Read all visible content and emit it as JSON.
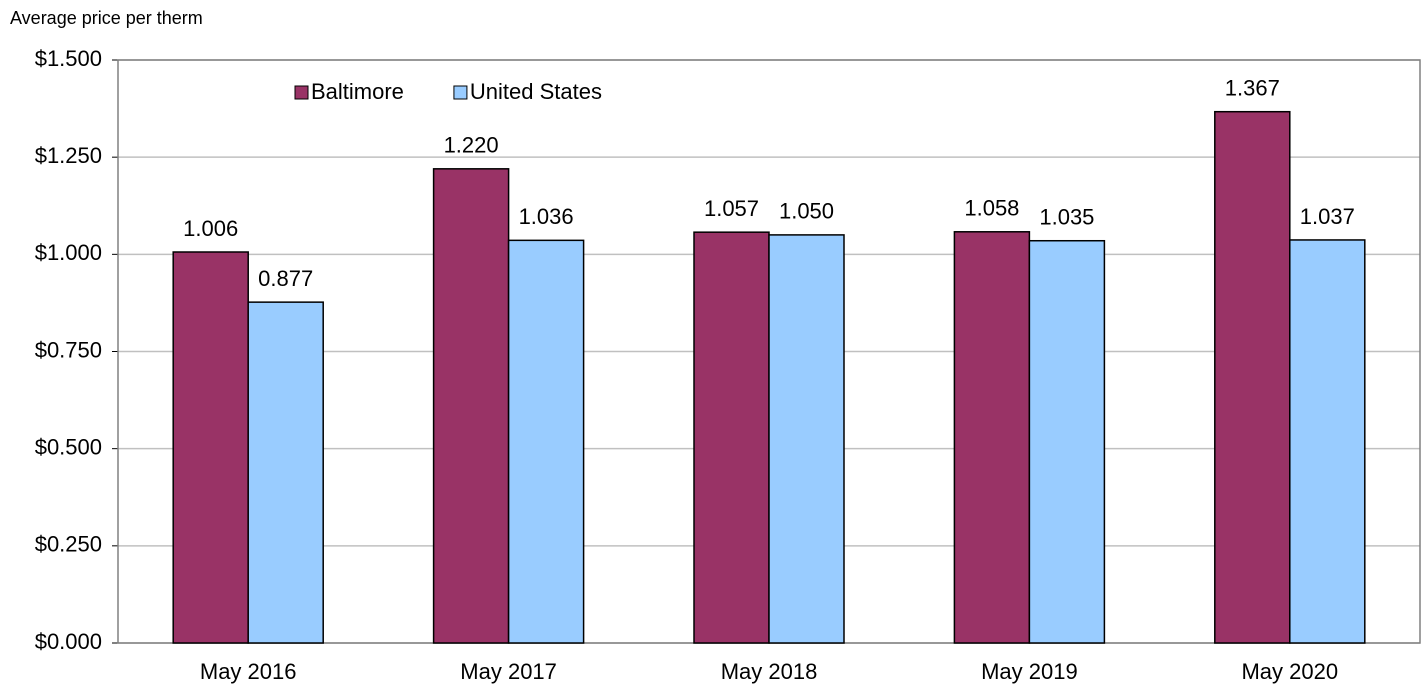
{
  "chart_data": {
    "type": "bar",
    "y_axis_label": "Average price per therm",
    "categories": [
      "May 2016",
      "May 2017",
      "May 2018",
      "May 2019",
      "May 2020"
    ],
    "series": [
      {
        "name": "Baltimore",
        "color": "#993366",
        "values": [
          1.006,
          1.22,
          1.057,
          1.058,
          1.367
        ],
        "value_labels": [
          "1.006",
          "1.220",
          "1.057",
          "1.058",
          "1.367"
        ]
      },
      {
        "name": "United States",
        "color": "#99ccff",
        "values": [
          0.877,
          1.036,
          1.05,
          1.035,
          1.037
        ],
        "value_labels": [
          "0.877",
          "1.036",
          "1.050",
          "1.035",
          "1.037"
        ]
      }
    ],
    "ylim": [
      0,
      1.5
    ],
    "yticks": [
      {
        "value": 0,
        "label": "$0.000"
      },
      {
        "value": 0.25,
        "label": "$0.250"
      },
      {
        "value": 0.5,
        "label": "$0.500"
      },
      {
        "value": 0.75,
        "label": "$0.750"
      },
      {
        "value": 1,
        "label": "$1.000"
      },
      {
        "value": 1.25,
        "label": "$1.250"
      },
      {
        "value": 1.5,
        "label": "$1.500"
      }
    ],
    "grid": true,
    "legend": "top-left"
  }
}
